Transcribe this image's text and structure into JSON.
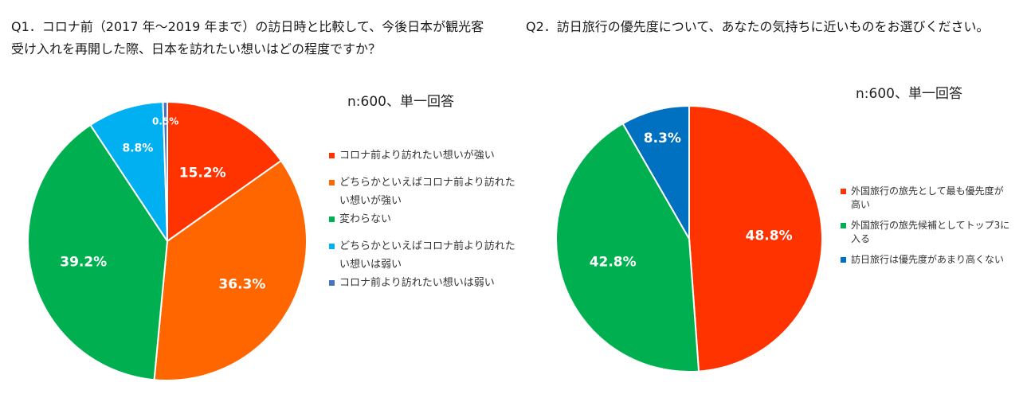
{
  "q1": {
    "question": "Q1．コロナ前（2017 年～2019 年まで）の訪日時と比較して、今後日本が観光客受け入れを再開した際、日本を訪れたい想いはどの程度ですか？",
    "sample": "n:600、単一回答"
  },
  "q2": {
    "question": "Q2．訪日旅行の優先度について、あなたの気持ちに近いものをお選びください。",
    "sample": "n:600、単一回答"
  },
  "chart_data": [
    {
      "type": "pie",
      "title": "Q1．コロナ前（2017 年～2019 年まで）の訪日時と比較して、今後日本が観光客受け入れを再開した際、日本を訪れたい想いはどの程度ですか？",
      "categories": [
        "コロナ前より訪れたい想いが強い",
        "どちらかといえばコロナ前より訪れたい想いが強い",
        "変わらない",
        "どちらかといえばコロナ前より訪れたい想いは弱い",
        "コロナ前より訪れたい想いは弱い"
      ],
      "values": [
        15.2,
        36.3,
        39.2,
        8.8,
        0.5
      ],
      "labels": [
        "15.2%",
        "36.3%",
        "39.2%",
        "8.8%",
        "0.5%"
      ],
      "colors": [
        "#ff3300",
        "#ff6600",
        "#00b050",
        "#00b0f0",
        "#4472c4"
      ],
      "legend_position": "right",
      "note": "n:600、単一回答"
    },
    {
      "type": "pie",
      "title": "Q2．訪日旅行の優先度について、あなたの気持ちに近いものをお選びください。",
      "categories": [
        "外国旅行の旅先として最も優先度が高い",
        "外国旅行の旅先候補としてトップ3に入る",
        "訪日旅行は優先度があまり高くない"
      ],
      "values": [
        48.8,
        42.8,
        8.3
      ],
      "labels": [
        "48.8%",
        "42.8%",
        "8.3%"
      ],
      "colors": [
        "#ff3300",
        "#00b050",
        "#0070c0"
      ],
      "legend_position": "right",
      "note": "n:600、単一回答"
    }
  ]
}
